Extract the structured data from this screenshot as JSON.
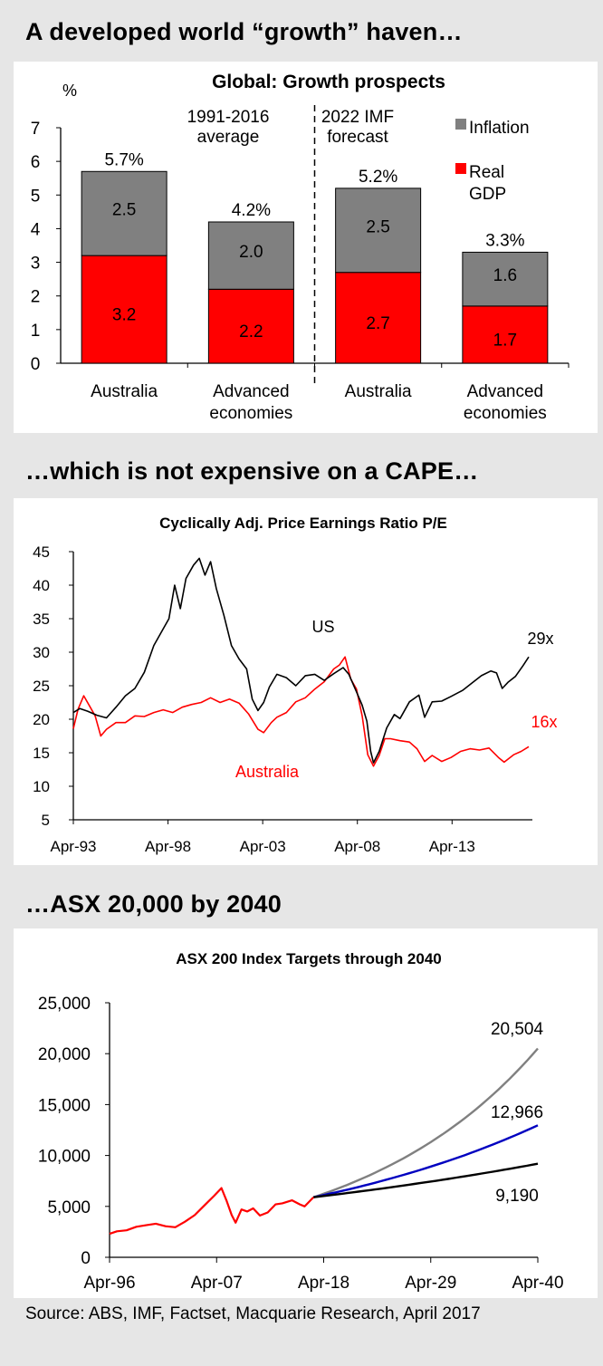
{
  "headings": {
    "h1": "A developed world “growth” haven…",
    "h2": "…which is not expensive on a CAPE…",
    "h3": "…ASX 20,000 by 2040"
  },
  "source": "Source: ABS, IMF, Factset, Macquarie Research, April 2017",
  "chart_data": [
    {
      "type": "bar",
      "stacked": true,
      "title": "Global: Growth prospects",
      "ylabel": "%",
      "ylim": [
        0,
        7
      ],
      "yticks": [
        "0",
        "1",
        "2",
        "3",
        "4",
        "5",
        "6",
        "7"
      ],
      "categories": [
        [
          "Australia"
        ],
        [
          "Advanced",
          "economies"
        ],
        [
          "Australia"
        ],
        [
          "Advanced",
          "economies"
        ]
      ],
      "groups": [
        {
          "label": [
            "1991-2016",
            "average"
          ]
        },
        {
          "label": [
            "2022 IMF",
            "forecast"
          ]
        }
      ],
      "series": [
        {
          "name": "Real GDP",
          "legend": [
            "Real",
            "GDP"
          ],
          "color": "#ff0000",
          "values": [
            3.2,
            2.2,
            2.7,
            1.7
          ],
          "labels": [
            "3.2",
            "2.2",
            "2.7",
            "1.7"
          ]
        },
        {
          "name": "Inflation",
          "legend": [
            "Inflation"
          ],
          "color": "#808080",
          "values": [
            2.5,
            2.0,
            2.5,
            1.6
          ],
          "labels": [
            "2.5",
            "2.0",
            "2.5",
            "1.6"
          ]
        }
      ],
      "totals": [
        5.7,
        4.2,
        5.2,
        3.3
      ],
      "total_labels": [
        "5.7%",
        "4.2%",
        "5.2%",
        "3.3%"
      ]
    },
    {
      "type": "line",
      "title": "Cyclically Adj. Price Earnings Ratio P/E",
      "ylim": [
        5,
        45
      ],
      "yticks": [
        "5",
        "10",
        "15",
        "20",
        "25",
        "30",
        "35",
        "40",
        "45"
      ],
      "xlim": [
        1993.25,
        2017.3
      ],
      "xticks": [
        {
          "v": 1993.25,
          "label": "Apr-93"
        },
        {
          "v": 1998.25,
          "label": "Apr-98"
        },
        {
          "v": 2003.25,
          "label": "Apr-03"
        },
        {
          "v": 2008.25,
          "label": "Apr-08"
        },
        {
          "v": 2013.25,
          "label": "Apr-13"
        }
      ],
      "series": [
        {
          "name": "US",
          "label": "US",
          "end_label": "29x",
          "color": "#000000",
          "points": [
            [
              1993.25,
              21
            ],
            [
              1993.6,
              21.6
            ],
            [
              1994,
              21.2
            ],
            [
              1994.5,
              20.6
            ],
            [
              1995,
              20.2
            ],
            [
              1995.5,
              21.8
            ],
            [
              1996,
              23.5
            ],
            [
              1996.5,
              24.6
            ],
            [
              1997,
              27
            ],
            [
              1997.5,
              31
            ],
            [
              1998,
              33.5
            ],
            [
              1998.3,
              35
            ],
            [
              1998.6,
              40
            ],
            [
              1998.9,
              36.5
            ],
            [
              1999.2,
              41
            ],
            [
              1999.6,
              43
            ],
            [
              1999.9,
              44
            ],
            [
              2000.2,
              41.5
            ],
            [
              2000.5,
              43.5
            ],
            [
              2000.8,
              39.5
            ],
            [
              2001.2,
              35.5
            ],
            [
              2001.6,
              31
            ],
            [
              2002,
              29
            ],
            [
              2002.4,
              27.5
            ],
            [
              2002.7,
              23
            ],
            [
              2003,
              21.3
            ],
            [
              2003.3,
              22.5
            ],
            [
              2003.6,
              24.8
            ],
            [
              2004,
              26.7
            ],
            [
              2004.5,
              26.2
            ],
            [
              2005,
              25
            ],
            [
              2005.5,
              26.5
            ],
            [
              2006,
              26.7
            ],
            [
              2006.5,
              25.8
            ],
            [
              2007,
              26.8
            ],
            [
              2007.5,
              27.7
            ],
            [
              2007.8,
              26.7
            ],
            [
              2008.2,
              24.1
            ],
            [
              2008.5,
              22.1
            ],
            [
              2008.75,
              19.7
            ],
            [
              2008.95,
              15.2
            ],
            [
              2009.1,
              13.5
            ],
            [
              2009.4,
              15.2
            ],
            [
              2009.8,
              18.7
            ],
            [
              2010.2,
              20.7
            ],
            [
              2010.5,
              20.1
            ],
            [
              2011,
              22.6
            ],
            [
              2011.5,
              23.6
            ],
            [
              2011.8,
              20.3
            ],
            [
              2012.2,
              22.6
            ],
            [
              2012.7,
              22.7
            ],
            [
              2013.2,
              23.4
            ],
            [
              2013.8,
              24.3
            ],
            [
              2014.3,
              25.4
            ],
            [
              2014.8,
              26.5
            ],
            [
              2015.3,
              27.2
            ],
            [
              2015.6,
              26.9
            ],
            [
              2015.9,
              24.6
            ],
            [
              2016.2,
              25.5
            ],
            [
              2016.6,
              26.4
            ],
            [
              2017,
              28
            ],
            [
              2017.3,
              29.3
            ]
          ]
        },
        {
          "name": "Australia",
          "label": "Australia",
          "end_label": "16x",
          "color": "#ff0000",
          "points": [
            [
              1993.25,
              18.6
            ],
            [
              1993.5,
              21.5
            ],
            [
              1993.8,
              23.5
            ],
            [
              1994.1,
              22
            ],
            [
              1994.4,
              20.5
            ],
            [
              1994.7,
              17.5
            ],
            [
              1995,
              18.5
            ],
            [
              1995.5,
              19.5
            ],
            [
              1996,
              19.5
            ],
            [
              1996.5,
              20.5
            ],
            [
              1997,
              20.4
            ],
            [
              1997.5,
              21
            ],
            [
              1998,
              21.4
            ],
            [
              1998.5,
              21
            ],
            [
              1999,
              21.8
            ],
            [
              1999.5,
              22.2
            ],
            [
              2000,
              22.5
            ],
            [
              2000.5,
              23.2
            ],
            [
              2001,
              22.5
            ],
            [
              2001.5,
              23
            ],
            [
              2002,
              22.4
            ],
            [
              2002.5,
              20.8
            ],
            [
              2003,
              18.5
            ],
            [
              2003.3,
              18
            ],
            [
              2003.7,
              19.5
            ],
            [
              2004,
              20.3
            ],
            [
              2004.5,
              21
            ],
            [
              2005,
              22.6
            ],
            [
              2005.5,
              23.2
            ],
            [
              2006,
              24.5
            ],
            [
              2006.5,
              25.6
            ],
            [
              2007,
              27.5
            ],
            [
              2007.3,
              28.1
            ],
            [
              2007.6,
              29.3
            ],
            [
              2007.9,
              26
            ],
            [
              2008.2,
              24.5
            ],
            [
              2008.5,
              20.5
            ],
            [
              2008.8,
              14.7
            ],
            [
              2009.1,
              13
            ],
            [
              2009.4,
              14.6
            ],
            [
              2009.7,
              17.1
            ],
            [
              2010,
              17.1
            ],
            [
              2010.5,
              16.8
            ],
            [
              2011,
              16.6
            ],
            [
              2011.4,
              15.6
            ],
            [
              2011.8,
              13.7
            ],
            [
              2012.2,
              14.6
            ],
            [
              2012.7,
              13.7
            ],
            [
              2013.2,
              14.3
            ],
            [
              2013.7,
              15.2
            ],
            [
              2014.2,
              15.6
            ],
            [
              2014.7,
              15.4
            ],
            [
              2015.2,
              15.7
            ],
            [
              2015.7,
              14.3
            ],
            [
              2016,
              13.6
            ],
            [
              2016.5,
              14.7
            ],
            [
              2016.9,
              15.2
            ],
            [
              2017.3,
              15.9
            ]
          ]
        }
      ]
    },
    {
      "type": "line",
      "title": "ASX 200 Index Targets through 2040",
      "ylim": [
        0,
        25000
      ],
      "yticks": [
        "0",
        "5,000",
        "10,000",
        "15,000",
        "20,000",
        "25,000"
      ],
      "yvals": [
        0,
        5000,
        10000,
        15000,
        20000,
        25000
      ],
      "xlim": [
        1996.25,
        2040.25
      ],
      "xticks": [
        {
          "v": 1996.25,
          "label": "Apr-96"
        },
        {
          "v": 2007.25,
          "label": "Apr-07"
        },
        {
          "v": 2018.25,
          "label": "Apr-18"
        },
        {
          "v": 2029.25,
          "label": "Apr-29"
        },
        {
          "v": 2040.25,
          "label": "Apr-40"
        }
      ],
      "history": {
        "name": "ASX 200",
        "color": "#ff0000",
        "points": [
          [
            1996.25,
            2300
          ],
          [
            1997,
            2550
          ],
          [
            1998,
            2650
          ],
          [
            1999,
            3000
          ],
          [
            2000,
            3150
          ],
          [
            2001,
            3300
          ],
          [
            2002,
            3050
          ],
          [
            2003,
            2950
          ],
          [
            2004,
            3500
          ],
          [
            2005,
            4150
          ],
          [
            2006,
            5100
          ],
          [
            2007,
            6050
          ],
          [
            2007.75,
            6800
          ],
          [
            2008.3,
            5500
          ],
          [
            2008.8,
            4150
          ],
          [
            2009.2,
            3400
          ],
          [
            2009.8,
            4700
          ],
          [
            2010.4,
            4500
          ],
          [
            2011,
            4800
          ],
          [
            2011.7,
            4100
          ],
          [
            2012.5,
            4400
          ],
          [
            2013.3,
            5200
          ],
          [
            2014,
            5300
          ],
          [
            2015,
            5600
          ],
          [
            2015.8,
            5200
          ],
          [
            2016.3,
            5000
          ],
          [
            2017.2,
            5900
          ]
        ]
      },
      "projections": [
        {
          "name": "20,504",
          "end_label": "20,504",
          "end_value": 20504,
          "color": "#808080"
        },
        {
          "name": "12,966",
          "end_label": "12,966",
          "end_value": 12966,
          "color": "#0000c0"
        },
        {
          "name": "9,190",
          "end_label": "9,190",
          "end_value": 9190,
          "color": "#000000"
        }
      ],
      "projection_start": [
        2017.2,
        5900
      ]
    }
  ]
}
